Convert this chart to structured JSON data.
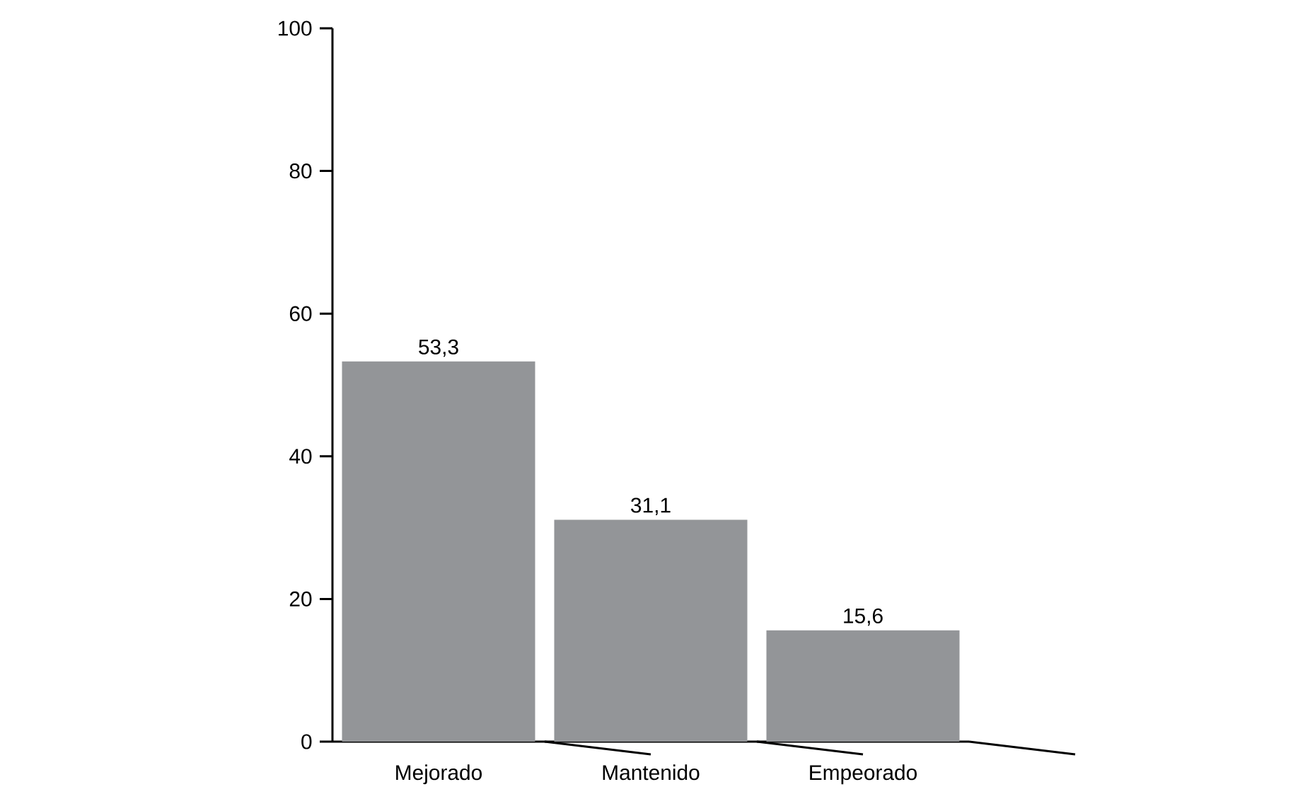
{
  "chart_data": {
    "type": "bar",
    "categories": [
      "Mejorado",
      "Mantenido",
      "Empeorado"
    ],
    "values": [
      53.3,
      31.1,
      15.6
    ],
    "value_labels": [
      "53,3",
      "31,1",
      "15,6"
    ],
    "color": "#939598",
    "ylim": [
      0,
      100
    ],
    "yticks": [
      0,
      20,
      40,
      60,
      80,
      100
    ],
    "grid": false
  }
}
